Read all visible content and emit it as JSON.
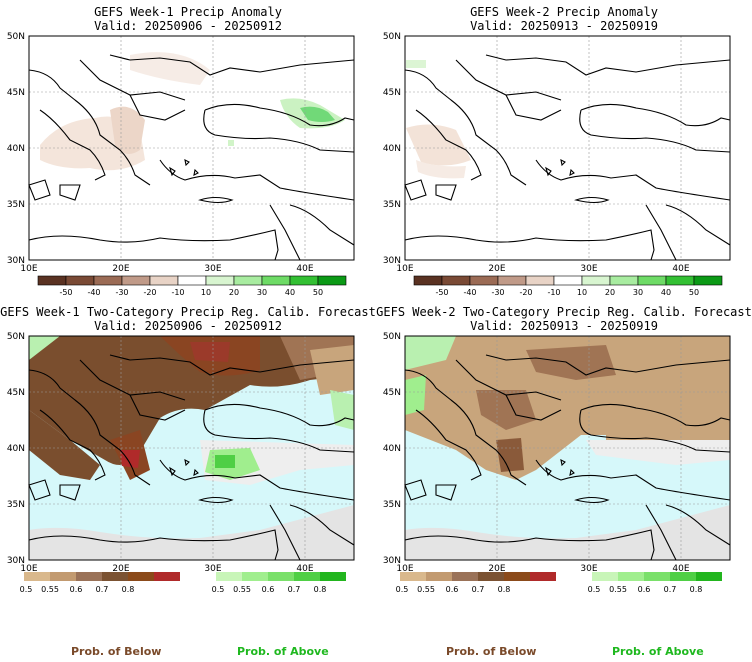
{
  "panels": [
    {
      "title": "GEFS Week-1 Precip Anomaly",
      "valid": "Valid: 20250906 - 20250912"
    },
    {
      "title": "GEFS Week-2 Precip Anomaly",
      "valid": "Valid: 20250913 - 20250919"
    },
    {
      "title": "GEFS Week-1 Two-Category Precip Reg. Calib. Forecast",
      "valid": "Valid: 20250906 - 20250912"
    },
    {
      "title": "GEFS Week-2 Two-Category Precip Reg. Calib. Forecast",
      "valid": "Valid: 20250913 - 20250919"
    }
  ],
  "axes": {
    "lat_labels": [
      "50N",
      "45N",
      "40N",
      "35N",
      "30N"
    ],
    "lon_labels": [
      "10E",
      "20E",
      "30E",
      "40E"
    ]
  },
  "anomaly_colorbar": {
    "labels": [
      "-50",
      "-40",
      "-30",
      "-20",
      "-10",
      "10",
      "20",
      "30",
      "40",
      "50"
    ],
    "colors": [
      "#5a3222",
      "#7a4a35",
      "#9b6b55",
      "#c09a88",
      "#e8d3c6",
      "#ffffff",
      "#d8f5d0",
      "#a8eca0",
      "#6edb66",
      "#33c033",
      "#0b9a16"
    ]
  },
  "below_colorbar": {
    "labels": [
      "0.5",
      "0.55",
      "0.6",
      "0.7",
      "0.8"
    ],
    "colors": [
      "#d9b88c",
      "#c29a70",
      "#9a7258",
      "#7b5232",
      "#8b4a1a",
      "#b02a2a"
    ]
  },
  "above_colorbar": {
    "labels": [
      "0.5",
      "0.55",
      "0.6",
      "0.7",
      "0.8"
    ],
    "colors": [
      "#c8f5b8",
      "#a0ee8e",
      "#7ae06a",
      "#4fcf45",
      "#22b51e"
    ]
  },
  "legend": {
    "prob_below": "Prob. of Below",
    "prob_above": "Prob. of Above",
    "below_color": "#7a4a2a",
    "above_color": "#1fb81f"
  },
  "colors": {
    "sea_calibrated": "#d6f8fa",
    "dry_mask": "#e4e4e4",
    "land_below_light": "#c8a57c",
    "land_below_mid": "#a07454",
    "land_below_dark": "#7a4e2e"
  }
}
